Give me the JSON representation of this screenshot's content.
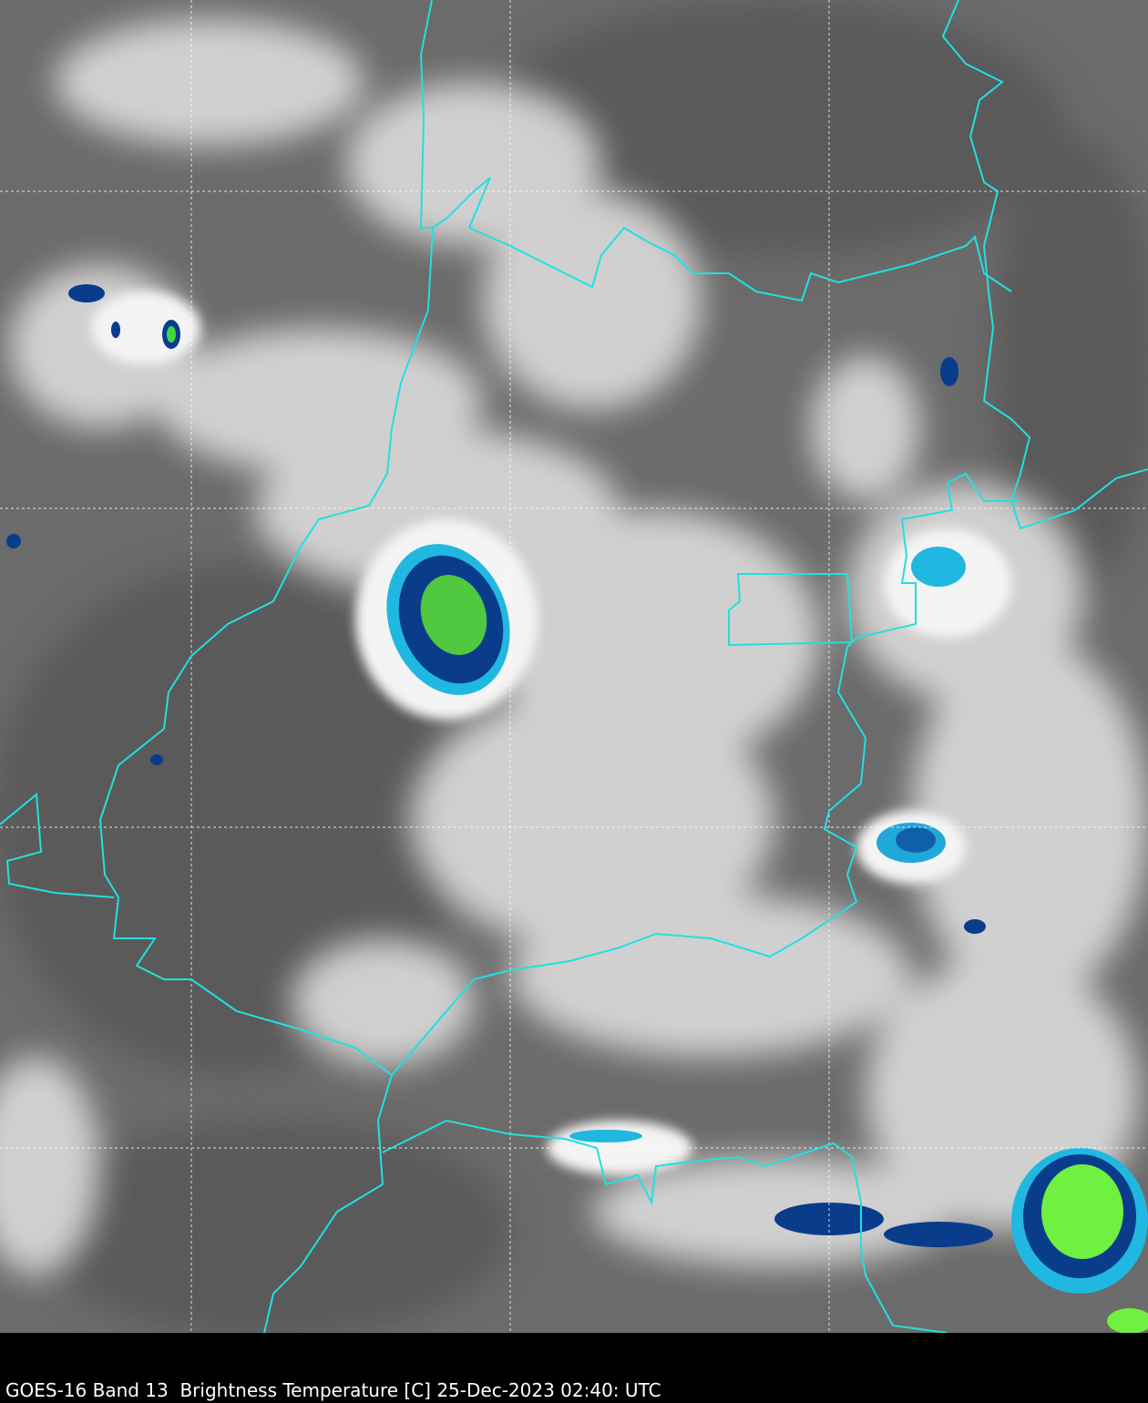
{
  "caption": "GOES-16 Band 13  Brightness Temperature [C] 25-Dec-2023 02:40: UTC",
  "colors": {
    "background": "#6e6e6e",
    "cloud": "#e6e6e6",
    "border": "#22e0e0",
    "grid": "#ffffff",
    "cold_blue": "#0a3c8c",
    "cold_cyan": "#20b8e0",
    "coldest_green": "#60e840"
  },
  "grid": {
    "style": "dashed",
    "visible": true
  }
}
